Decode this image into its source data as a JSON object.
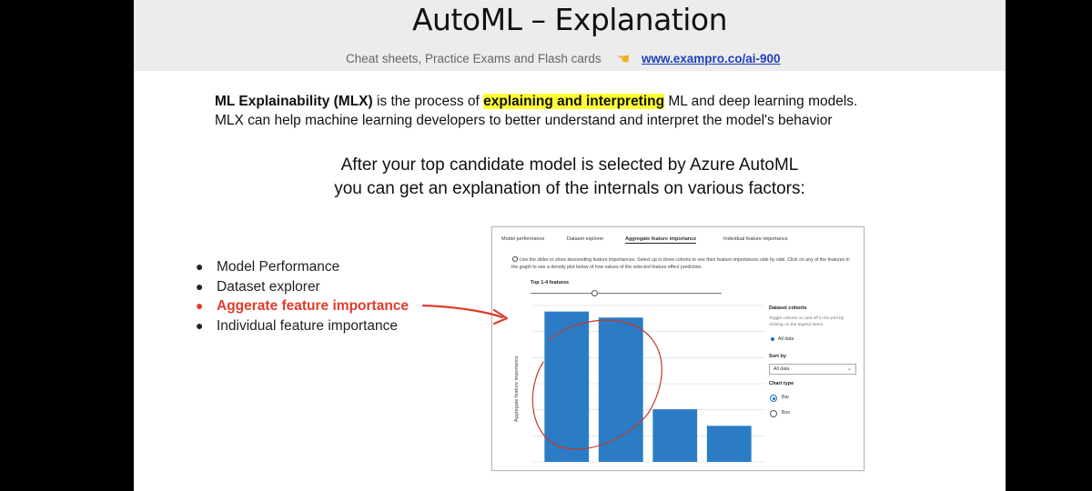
{
  "header": {
    "title": "AutoML – Explanation",
    "subtitle": "Cheat sheets, Practice Exams and Flash cards",
    "hand_icon": "pointing-hand-icon",
    "link": "www.exampro.co/ai-900"
  },
  "definition": {
    "term": "ML Explainability (MLX)",
    "mid": " is the process of ",
    "highlight": "explaining and interpreting",
    "end": "  ML and deep learning models.",
    "line2": "MLX can help machine learning developers to better understand and interpret the model's behavior"
  },
  "intro": {
    "line1": "After your top candidate model is selected by Azure AutoML",
    "line2": "you can get an explanation of the internals on various factors:"
  },
  "bullets": [
    {
      "label": "Model Performance",
      "active": false
    },
    {
      "label": "Dataset explorer",
      "active": false
    },
    {
      "label": "Aggerate feature importance",
      "active": true
    },
    {
      "label": "Individual feature importance",
      "active": false
    }
  ],
  "screenshot": {
    "tabs": [
      "Model performance",
      "Dataset explorer",
      "Aggregate feature importance",
      "Individual feature importance"
    ],
    "active_tab": "Aggregate feature importance",
    "info_text": "Use the slider to show descending feature importances. Select up to three cohorts to see their feature importances side by side. Click on any of the features in the graph to see a density plot below of how values of the selected feature effect prediction.",
    "top_features": "Top 1-4 features",
    "cohorts_title": "Dataset cohorts",
    "cohorts_help": "Toggle cohorts on and off in the plot by clicking on the legend items.",
    "legend_item": "All data",
    "sort_by": "Sort by",
    "sort_value": "All data",
    "chart_type": "Chart type",
    "chart_type_options": [
      "Bar",
      "Box"
    ],
    "selected_chart_type": "Bar"
  },
  "chart_data": {
    "type": "bar",
    "ylabel": "Aggregate feature importance",
    "xlabel": "",
    "categories": [
      "",
      "",
      "",
      ""
    ],
    "values": [
      1.0,
      0.96,
      0.35,
      0.24
    ],
    "ylim": [
      0,
      1.04
    ],
    "color": "#2b7cc4",
    "grid": true
  },
  "colors": {
    "highlight": "#ffff33",
    "accent_red": "#e03c2c",
    "link_blue": "#1f3fbf"
  }
}
